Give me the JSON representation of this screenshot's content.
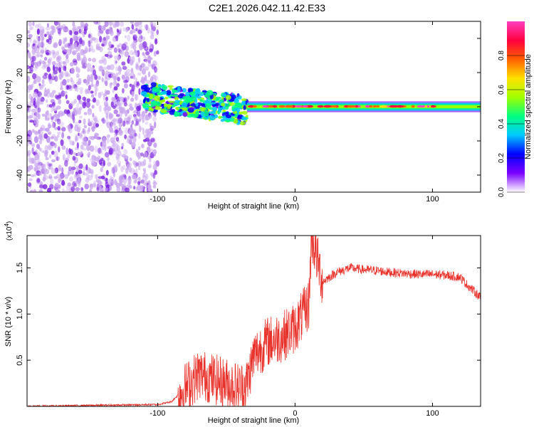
{
  "page_title": "C2E1.2026.042.11.42.E33",
  "colors": {
    "snr_line": "#e8312a",
    "axis": "#000000",
    "spec_purple": "#7a1fe0",
    "spec_light": "#c9a6ee"
  },
  "chart_data": [
    {
      "type": "heatmap",
      "name": "spectrogram",
      "title": "C2E1.2026.042.11.42.E33",
      "xlabel": "Height of straight line (km)",
      "ylabel": "Frequency (Hz)",
      "xlim": [
        -195,
        135
      ],
      "ylim": [
        -50,
        50
      ],
      "x_ticks": [
        -100,
        0,
        100
      ],
      "x_tick_labels": [
        "-100",
        "0",
        "100"
      ],
      "y_ticks": [
        -40,
        -20,
        0,
        20,
        40
      ],
      "y_tick_labels": [
        "-40",
        "-20",
        "0",
        "20",
        "40"
      ],
      "colorbar": {
        "label": "Normalized spectral amplitude",
        "range": [
          0,
          1
        ],
        "ticks": [
          0.0,
          0.2,
          0.4,
          0.6,
          0.8
        ],
        "tick_labels": [
          "0.0",
          "0.2",
          "0.4",
          "0.6",
          "0.8"
        ],
        "colormap": [
          "#ffffff",
          "#7a00ff",
          "#0000ff",
          "#00c8ff",
          "#00ff80",
          "#a0ff00",
          "#ffe000",
          "#ff6000",
          "#ff0040",
          "#ff40c0"
        ]
      },
      "regions": [
        {
          "x_range": [
            -195,
            -100
          ],
          "f_range": [
            -50,
            50
          ],
          "amplitude": 0.1,
          "description": "noise"
        },
        {
          "x_range": [
            -110,
            -35
          ],
          "f_range": [
            -15,
            15
          ],
          "amplitude": 0.4
        },
        {
          "x_range": [
            -35,
            135
          ],
          "f_range": [
            -3,
            3
          ],
          "amplitude": 0.75
        }
      ]
    },
    {
      "type": "line",
      "name": "snr",
      "xlabel": "Height of straight line (km)",
      "ylabel": "SNR (10 * v/v)",
      "y_multiplier": "(x10",
      "y_multiplier_exp": "4",
      "y_multiplier_close": ")",
      "xlim": [
        -195,
        135
      ],
      "ylim": [
        0,
        1.85
      ],
      "x_ticks": [
        -100,
        0,
        100
      ],
      "x_tick_labels": [
        "-100",
        "0",
        "100"
      ],
      "y_ticks": [
        0.5,
        1.0,
        1.5
      ],
      "y_tick_labels": [
        "0.5",
        "1.0",
        "1.5"
      ],
      "series": [
        {
          "name": "SNR",
          "x": [
            -195,
            -150,
            -100,
            -90,
            -80,
            -70,
            -60,
            -50,
            -40,
            -35,
            -30,
            -20,
            -10,
            0,
            10,
            12,
            20,
            30,
            40,
            50,
            60,
            70,
            80,
            90,
            100,
            110,
            120,
            125,
            130,
            135
          ],
          "values": [
            0.0,
            0.01,
            0.02,
            0.05,
            0.2,
            0.35,
            0.3,
            0.25,
            0.2,
            0.25,
            0.55,
            0.7,
            0.75,
            0.85,
            1.1,
            1.85,
            1.35,
            1.45,
            1.5,
            1.48,
            1.47,
            1.45,
            1.44,
            1.43,
            1.43,
            1.42,
            1.4,
            1.32,
            1.25,
            1.18
          ]
        }
      ]
    }
  ]
}
